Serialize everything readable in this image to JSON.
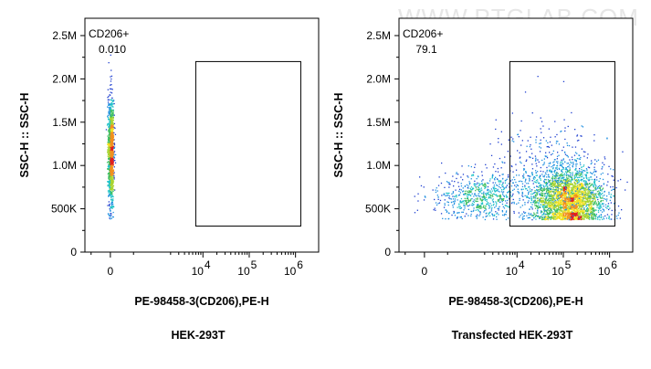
{
  "watermark": "WWW.PTGLAB.COM",
  "chart_data": [
    {
      "type": "scatter",
      "subtype": "flow-cytometry-density-plot",
      "caption": "HEK-293T",
      "xlabel": "PE-98458-3(CD206),PE-H",
      "ylabel": "SSC-H :: SSC-H",
      "x_scale": "biexponential",
      "x_ticks": [
        {
          "value": 0,
          "label": "0"
        },
        {
          "value": 10000,
          "label": "10",
          "exp": "4"
        },
        {
          "value": 100000,
          "label": "10",
          "exp": "5"
        },
        {
          "value": 1000000,
          "label": "10",
          "exp": "6"
        }
      ],
      "y_ticks": [
        {
          "value": 0,
          "label": "0"
        },
        {
          "value": 500000,
          "label": "500K"
        },
        {
          "value": 1000000,
          "label": "1.0M"
        },
        {
          "value": 1500000,
          "label": "1.5M"
        },
        {
          "value": 2000000,
          "label": "2.0M"
        },
        {
          "value": 2500000,
          "label": "2.5M"
        }
      ],
      "ylim": [
        0,
        2700000
      ],
      "gate": {
        "name": "CD206+",
        "percent": "0.010",
        "x_range": [
          7000,
          1300000
        ],
        "y_range": [
          300000,
          2200000
        ]
      },
      "populations": [
        {
          "cx": 0,
          "cy": 1150000,
          "sx": 0.03,
          "sy": 330000,
          "n": 1400,
          "kind": "narrow"
        }
      ]
    },
    {
      "type": "scatter",
      "subtype": "flow-cytometry-density-plot",
      "caption": "Transfected HEK-293T",
      "xlabel": "PE-98458-3(CD206),PE-H",
      "ylabel": "SSC-H :: SSC-H",
      "x_scale": "biexponential",
      "x_ticks": [
        {
          "value": 0,
          "label": "0"
        },
        {
          "value": 10000,
          "label": "10",
          "exp": "4"
        },
        {
          "value": 100000,
          "label": "10",
          "exp": "5"
        },
        {
          "value": 1000000,
          "label": "10",
          "exp": "6"
        }
      ],
      "y_ticks": [
        {
          "value": 0,
          "label": "0"
        },
        {
          "value": 500000,
          "label": "500K"
        },
        {
          "value": 1000000,
          "label": "1.0M"
        },
        {
          "value": 1500000,
          "label": "1.5M"
        },
        {
          "value": 2000000,
          "label": "2.0M"
        },
        {
          "value": 2500000,
          "label": "2.5M"
        }
      ],
      "ylim": [
        0,
        2700000
      ],
      "gate": {
        "name": "CD206+",
        "percent": "79.1",
        "x_range": [
          7000,
          1300000
        ],
        "y_range": [
          300000,
          2200000
        ]
      },
      "populations": [
        {
          "cx": 130000,
          "cy": 610000,
          "sx": 0.38,
          "sy": 170000,
          "n": 2600,
          "kind": "main"
        },
        {
          "cx": 1500,
          "cy": 650000,
          "sx": 0.5,
          "sy": 140000,
          "n": 700,
          "kind": "neg"
        },
        {
          "cx": 60000,
          "cy": 900000,
          "sx": 0.6,
          "sy": 300000,
          "n": 500,
          "kind": "sparse"
        }
      ]
    }
  ]
}
